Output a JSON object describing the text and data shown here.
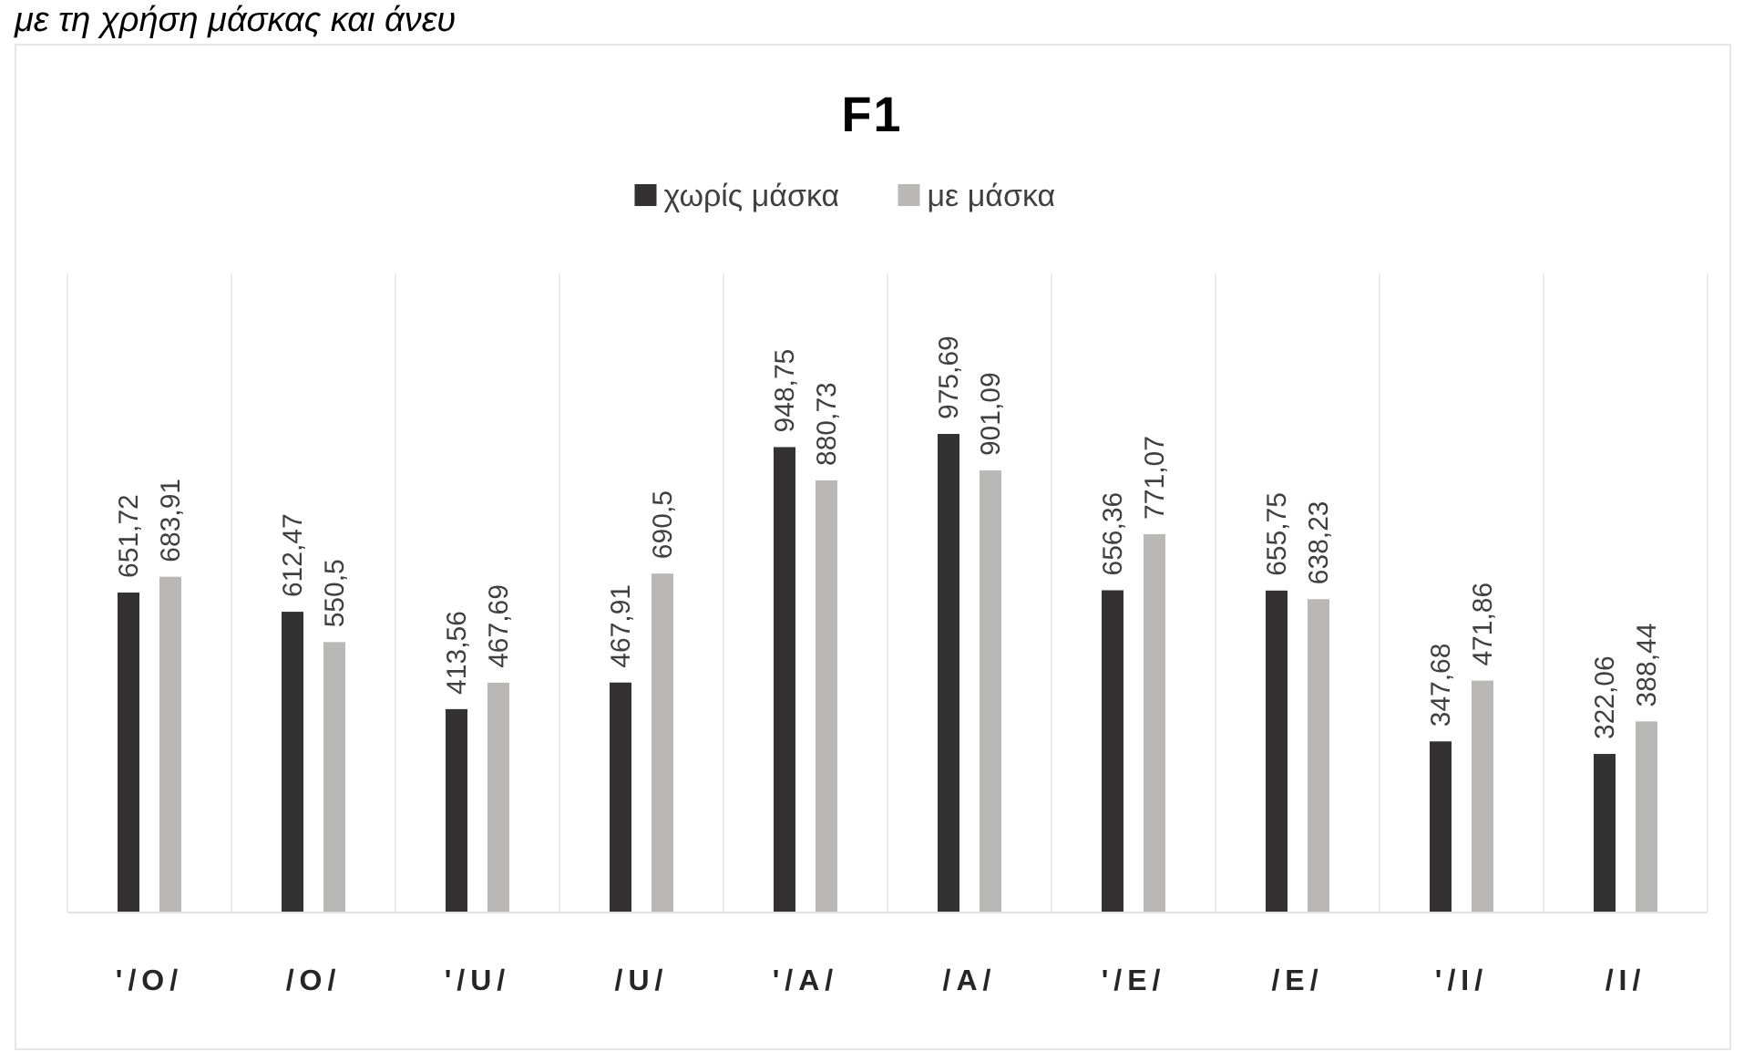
{
  "chart_data": {
    "type": "bar",
    "title": "F1",
    "annotations": [
      "με τη χρήση μάσκας και άνευ"
    ],
    "categories": [
      "'/O/",
      "/O/",
      "'/U/",
      "/U/",
      "'/A/",
      "/A/",
      "'/E/",
      "/E/",
      "'/I/",
      "/I/"
    ],
    "series": [
      {
        "name": "χωρίς μάσκα",
        "color": "#333132",
        "values": [
          651.72,
          612.47,
          413.56,
          467.91,
          948.75,
          975.69,
          656.36,
          655.75,
          347.68,
          322.06
        ],
        "value_labels": [
          "651,72",
          "612,47",
          "413,56",
          "467,91",
          "948,75",
          "975,69",
          "656,36",
          "655,75",
          "347,68",
          "322,06"
        ]
      },
      {
        "name": "με μάσκα",
        "color": "#b9b8b7",
        "values": [
          683.91,
          550.5,
          467.69,
          690.5,
          880.73,
          901.09,
          771.07,
          638.23,
          471.86,
          388.44
        ],
        "value_labels": [
          "683,91",
          "550,5",
          "467,69",
          "690,5",
          "880,73",
          "901,09",
          "771,07",
          "638,23",
          "471,86",
          "388,44"
        ]
      }
    ],
    "grid": "x",
    "legend": "top"
  }
}
